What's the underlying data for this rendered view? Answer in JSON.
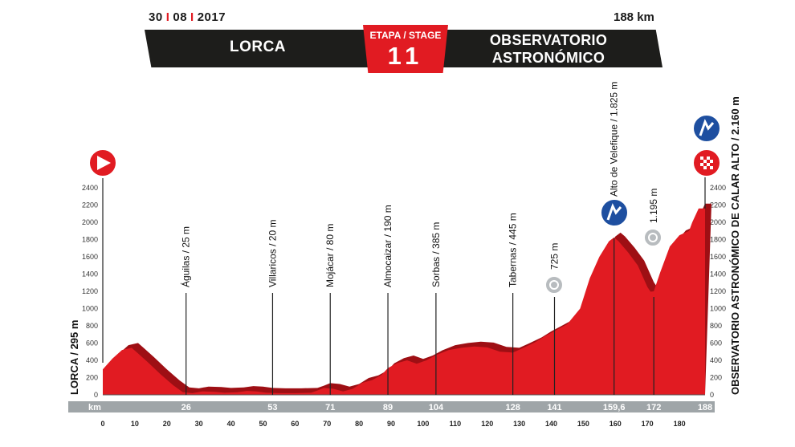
{
  "header": {
    "date_day": "30",
    "date_month": "08",
    "date_year": "2017",
    "distance": "188 km",
    "start_name": "LORCA",
    "finish_name": "OBSERVATORIO ASTRONÓMICO\nDE CALAR ALTO",
    "stage_label": "ETAPA / STAGE",
    "stage_number": "11"
  },
  "colors": {
    "profile_red": "#e11b22",
    "dark_red": "#9e0f14",
    "bar_dark": "#1d1d1b",
    "km_band": "#9fa5a8",
    "climb_blue": "#1e4fa0"
  },
  "chart_data": {
    "type": "area",
    "title": "",
    "xlabel": "km",
    "ylabel": "",
    "xlim": [
      0,
      188
    ],
    "ylim": [
      0,
      2400
    ],
    "y_ticks": [
      0,
      200,
      400,
      600,
      800,
      1000,
      1200,
      1400,
      1600,
      1800,
      2000,
      2200,
      2400
    ],
    "x_ticks": [
      0,
      10,
      20,
      30,
      40,
      50,
      60,
      70,
      80,
      90,
      100,
      110,
      120,
      130,
      140,
      150,
      160,
      170,
      180
    ],
    "profile": [
      [
        0,
        295
      ],
      [
        3,
        420
      ],
      [
        6,
        520
      ],
      [
        9,
        545
      ],
      [
        11,
        480
      ],
      [
        14,
        380
      ],
      [
        18,
        240
      ],
      [
        22,
        110
      ],
      [
        25,
        30
      ],
      [
        28,
        20
      ],
      [
        31,
        40
      ],
      [
        35,
        35
      ],
      [
        38,
        25
      ],
      [
        42,
        30
      ],
      [
        45,
        45
      ],
      [
        48,
        40
      ],
      [
        51,
        25
      ],
      [
        55,
        20
      ],
      [
        60,
        20
      ],
      [
        65,
        25
      ],
      [
        67,
        50
      ],
      [
        69,
        80
      ],
      [
        72,
        70
      ],
      [
        75,
        40
      ],
      [
        78,
        70
      ],
      [
        81,
        140
      ],
      [
        84,
        170
      ],
      [
        87,
        230
      ],
      [
        89,
        310
      ],
      [
        92,
        370
      ],
      [
        95,
        400
      ],
      [
        98,
        360
      ],
      [
        101,
        400
      ],
      [
        104,
        460
      ],
      [
        108,
        520
      ],
      [
        112,
        545
      ],
      [
        116,
        560
      ],
      [
        120,
        550
      ],
      [
        124,
        500
      ],
      [
        128,
        490
      ],
      [
        131,
        540
      ],
      [
        135,
        610
      ],
      [
        138,
        680
      ],
      [
        141,
        740
      ],
      [
        145,
        820
      ],
      [
        149,
        1000
      ],
      [
        152,
        1350
      ],
      [
        155,
        1600
      ],
      [
        158,
        1780
      ],
      [
        159.6,
        1825
      ],
      [
        161,
        1780
      ],
      [
        164,
        1650
      ],
      [
        167,
        1500
      ],
      [
        170,
        1250
      ],
      [
        171,
        1195
      ],
      [
        172,
        1200
      ],
      [
        174,
        1420
      ],
      [
        177,
        1720
      ],
      [
        180,
        1850
      ],
      [
        183,
        1900
      ],
      [
        184,
        2000
      ],
      [
        186,
        2160
      ],
      [
        188,
        2160
      ]
    ],
    "points": [
      {
        "km": "26",
        "x": 26,
        "name": "Águilas / 25 m"
      },
      {
        "km": "53",
        "x": 53,
        "name": "Villaricos / 20 m"
      },
      {
        "km": "71",
        "x": 71,
        "name": "Mojácar / 80 m"
      },
      {
        "km": "89",
        "x": 89,
        "name": "Almocaizar / 190 m"
      },
      {
        "km": "104",
        "x": 104,
        "name": "Sorbas / 385 m"
      },
      {
        "km": "128",
        "x": 128,
        "name": "Tabernas / 445 m"
      },
      {
        "km": "141",
        "x": 141,
        "name": "725 m"
      },
      {
        "km": "159,6",
        "x": 159.6,
        "name": "Alto de Velefique / 1.825 m"
      },
      {
        "km": "172",
        "x": 172,
        "name": "1.195 m"
      },
      {
        "km": "188",
        "x": 188,
        "name": ""
      }
    ],
    "start_label": "LORCA / 295 m",
    "finish_label": "OBSERVATORIO ASTRONÓMICO DE CALAR ALTO / 2.160 m",
    "km_band_label": "km",
    "icons": [
      "start-flag-icon",
      "climb-icon",
      "sprint-icon",
      "finish-icon"
    ]
  }
}
